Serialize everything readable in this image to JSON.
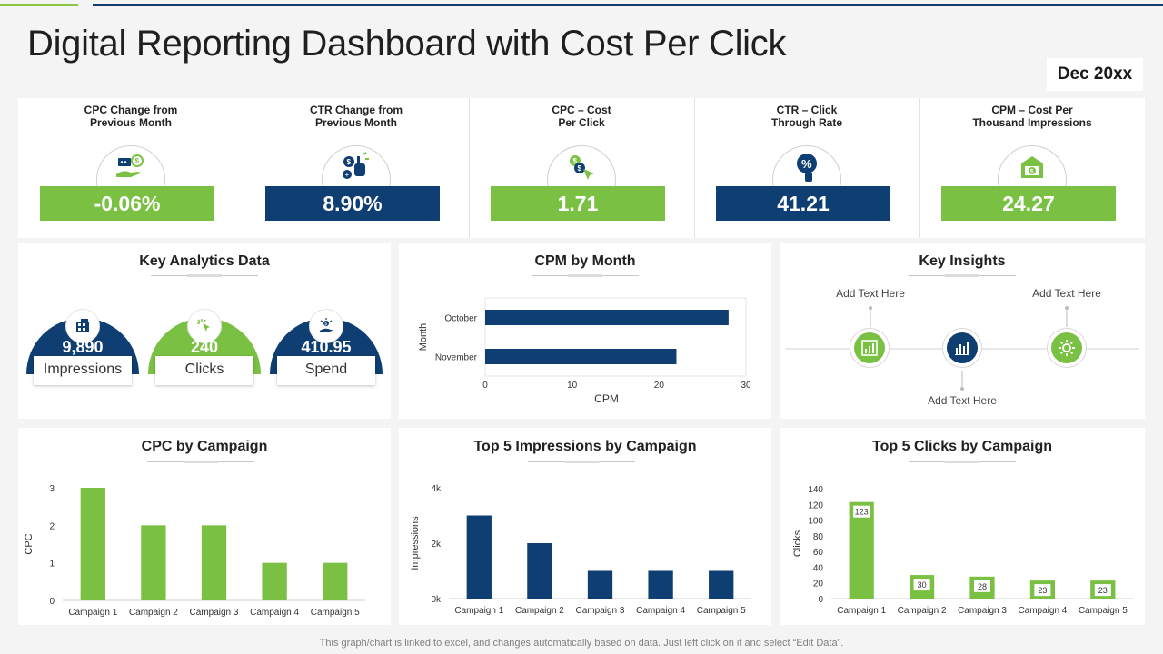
{
  "header": {
    "title": "Digital Reporting Dashboard with Cost Per Click",
    "date": "Dec 20xx"
  },
  "kpis": [
    {
      "title1": "CPC Change from",
      "title2": "Previous Month",
      "value": "-0.06%",
      "color": "#7ac143",
      "icon": "money-hand-icon"
    },
    {
      "title1": "CTR Change from",
      "title2": "Previous Month",
      "value": "8.90%",
      "color": "#0f3e72",
      "icon": "click-hand-icon"
    },
    {
      "title1": "CPC – Cost",
      "title2": "Per Click",
      "value": "1.71",
      "color": "#7ac143",
      "icon": "coins-cursor-icon"
    },
    {
      "title1": "CTR – Click",
      "title2": "Through Rate",
      "value": "41.21",
      "color": "#0f3e72",
      "icon": "percent-click-icon"
    },
    {
      "title1": "CPM – Cost Per",
      "title2": "Thousand Impressions",
      "value": "24.27",
      "color": "#7ac143",
      "icon": "money-box-icon"
    }
  ],
  "key_analytics": {
    "title": "Key Analytics Data",
    "cards": [
      {
        "value": "9,890",
        "label": "Impressions",
        "icon": "building-icon",
        "color": "#0f3e72"
      },
      {
        "value": "240",
        "label": "Clicks",
        "icon": "cursor-click-icon",
        "color": "#7ac143"
      },
      {
        "value": "410.95",
        "label": "Spend",
        "icon": "hand-money-icon",
        "color": "#0f3e72"
      }
    ]
  },
  "key_insights": {
    "title": "Key Insights",
    "texts": [
      "Add Text Here",
      "Add Text Here",
      "Add Text Here"
    ]
  },
  "footer_note": "This graph/chart is linked to excel,  and changes automatically based on data. Just left click on it and select “Edit Data”.",
  "colors": {
    "green": "#7ac143",
    "navy": "#0f3e72"
  },
  "chart_data": [
    {
      "id": "cpm",
      "type": "bar",
      "orientation": "horizontal",
      "title": "CPM by Month",
      "categories": [
        "October",
        "November"
      ],
      "values": [
        28,
        22
      ],
      "xlabel": "CPM",
      "ylabel": "Month",
      "xlim": [
        0,
        30
      ],
      "xticks": [
        "0",
        "10",
        "20",
        "30"
      ],
      "color": "#0f3e72"
    },
    {
      "id": "cpc",
      "type": "bar",
      "title": "CPC by Campaign",
      "categories": [
        "Campaign 1",
        "Campaign 2",
        "Campaign 3",
        "Campaign 4",
        "Campaign 5"
      ],
      "values": [
        3,
        2,
        2,
        1,
        1
      ],
      "ylabel": "CPC",
      "ylim": [
        0,
        3
      ],
      "yticks": [
        "0",
        "1",
        "2",
        "3"
      ],
      "color": "#7ac143"
    },
    {
      "id": "imp",
      "type": "bar",
      "title": "Top 5 Impressions by Campaign",
      "categories": [
        "Campaign 1",
        "Campaign 2",
        "Campaign 3",
        "Campaign 4",
        "Campaign 5"
      ],
      "values": [
        3000,
        2000,
        1000,
        1000,
        1000
      ],
      "ylabel": "Impressions",
      "ylim": [
        0,
        4000
      ],
      "yticks": [
        "0k",
        "2k",
        "4k"
      ],
      "color": "#0f3e72"
    },
    {
      "id": "clk",
      "type": "bar",
      "title": "Top 5 Clicks by Campaign",
      "categories": [
        "Campaign 1",
        "Campaign 2",
        "Campaign 3",
        "Campaign 4",
        "Campaign 5"
      ],
      "values": [
        123,
        30,
        28,
        23,
        23
      ],
      "ylabel": "Clicks",
      "ylim": [
        0,
        140
      ],
      "yticks": [
        "0",
        "20",
        "40",
        "60",
        "80",
        "100",
        "120",
        "140"
      ],
      "color": "#7ac143",
      "data_labels": [
        "123",
        "30",
        "28",
        "23",
        "23"
      ]
    }
  ]
}
